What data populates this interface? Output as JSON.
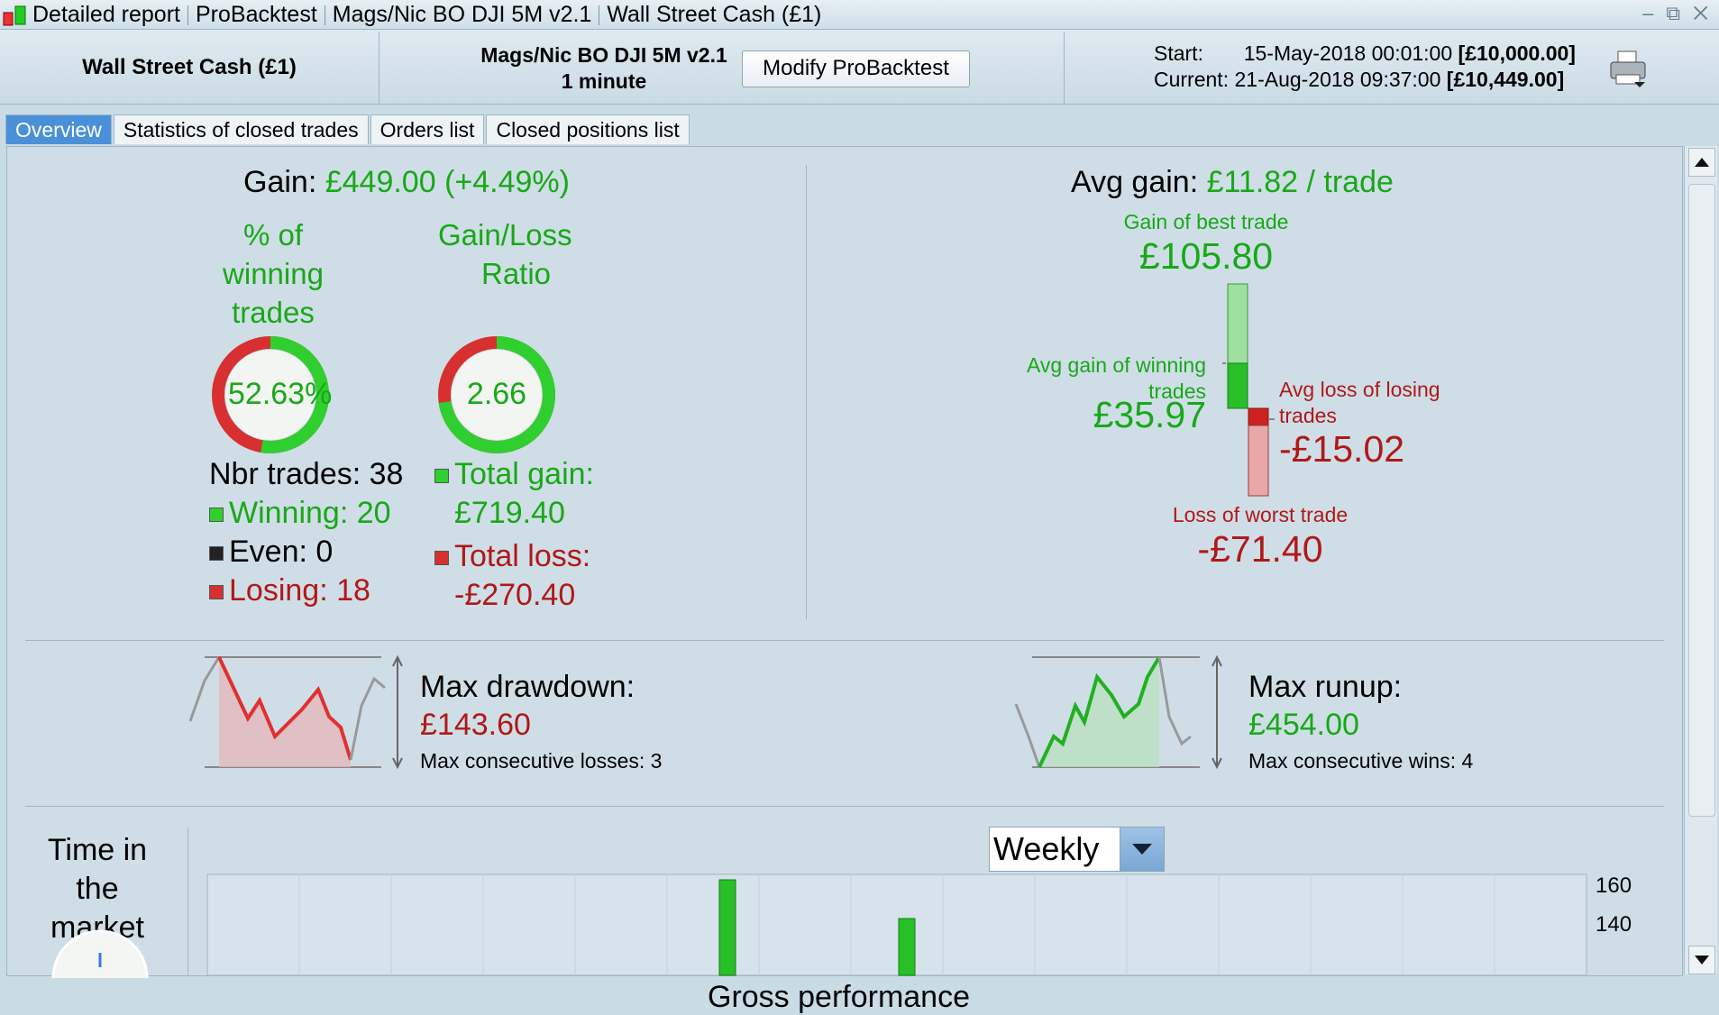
{
  "titlebar": {
    "parts": [
      "Detailed report",
      "ProBacktest",
      "Mags/Nic BO DJI 5M v2.1",
      "Wall Street Cash (£1)"
    ],
    "controls": "– ⧉ ✕"
  },
  "header": {
    "account": "Wall Street Cash (£1)",
    "strategy_name": "Mags/Nic BO DJI 5M v2.1",
    "timeframe": "1 minute",
    "modify_button": "Modify ProBacktest",
    "start_label": "Start:",
    "start_date": "15-May-2018 00:01:00",
    "start_value": "[£10,000.00]",
    "current_label": "Current:",
    "current_date": "21-Aug-2018 09:37:00",
    "current_value": "[£10,449.00]"
  },
  "tabs": [
    {
      "label": "Overview",
      "active": true
    },
    {
      "label": "Statistics of closed trades",
      "active": false
    },
    {
      "label": "Orders list",
      "active": false
    },
    {
      "label": "Closed positions list",
      "active": false
    }
  ],
  "overview": {
    "gain_label": "Gain:",
    "gain_value": "£449.00",
    "gain_pct": "(+4.49%)",
    "pct_winning_title_1": "% of",
    "pct_winning_title_2": "winning",
    "pct_winning_title_3": "trades",
    "pct_winning_value": "52.63%",
    "pct_winning_fraction": 0.5263,
    "ratio_title_1": "Gain/Loss",
    "ratio_title_2": "Ratio",
    "ratio_value": "2.66",
    "ratio_fraction": 0.727,
    "nbr_trades_label": "Nbr trades: 38",
    "winning_label": "Winning: 20",
    "even_label": "Even: 0",
    "losing_label": "Losing: 18",
    "total_gain_label": "Total gain:",
    "total_gain_value": "£719.40",
    "total_loss_label": "Total loss:",
    "total_loss_value": "-£270.40",
    "avg_gain_label": "Avg gain:",
    "avg_gain_value": "£11.82 / trade",
    "best_trade_label": "Gain of best trade",
    "best_trade_value": "£105.80",
    "avg_win_label_1": "Avg gain of winning",
    "avg_win_label_2": "trades",
    "avg_win_value": "£35.97",
    "avg_loss_label_1": "Avg loss of losing",
    "avg_loss_label_2": "trades",
    "avg_loss_value": "-£15.02",
    "worst_trade_label": "Loss of worst trade",
    "worst_trade_value": "-£71.40",
    "drawdown_label": "Max drawdown:",
    "drawdown_value": "£143.60",
    "consec_losses": "Max consecutive losses: 3",
    "runup_label": "Max runup:",
    "runup_value": "£454.00",
    "consec_wins": "Max consecutive wins: 4",
    "time_in_market_1": "Time in",
    "time_in_market_2": "the",
    "time_in_market_3": "market",
    "gross_perf_label": "Gross performance",
    "period_select": "Weekly"
  },
  "colors": {
    "green": "#18a818",
    "red": "#b01818",
    "tab_active": "#4a90d9",
    "panel": "#cfdee6"
  },
  "chart_data": {
    "type": "bar",
    "title": "Gross performance",
    "ytick_labels": [
      "160",
      "140"
    ],
    "visible_bars_approx": [
      160,
      140
    ],
    "note_values": "only partially visible; two bars shown"
  }
}
